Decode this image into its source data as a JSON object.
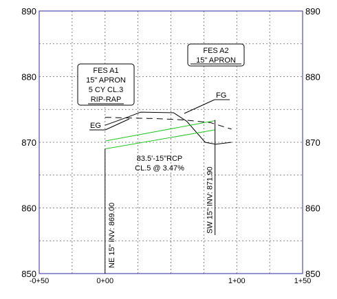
{
  "chart_data": {
    "type": "line",
    "title": "",
    "xlabel": "",
    "ylabel": "",
    "xlim": [
      -0.5,
      1.5
    ],
    "ylim": [
      850,
      890
    ],
    "grid": true,
    "x_ticks": [
      {
        "value": -0.5,
        "label": "-0+50"
      },
      {
        "value": 0,
        "label": "0+00"
      },
      {
        "value": 1,
        "label": "1+00"
      },
      {
        "value": 1.5,
        "label": "1+50"
      }
    ],
    "y_ticks": [
      {
        "value": 850,
        "label": "850"
      },
      {
        "value": 860,
        "label": "860"
      },
      {
        "value": 870,
        "label": "870"
      },
      {
        "value": 880,
        "label": "880"
      },
      {
        "value": 890,
        "label": "890"
      }
    ],
    "grid_x": [
      -0.25,
      0.25,
      0.5,
      0.75,
      1.25
    ],
    "grid_y": [
      855,
      865,
      875,
      885
    ],
    "series": [
      {
        "name": "FG",
        "style": "solid",
        "color": "#000000",
        "x": [
          0,
          0.18,
          0.27,
          0.52,
          0.62,
          0.76,
          0.84,
          0.96
        ],
        "y": [
          872.6,
          873.9,
          874.6,
          874.5,
          873.2,
          870.0,
          869.7,
          870.0
        ]
      },
      {
        "name": "EG",
        "style": "dashed",
        "color": "#000000",
        "x": [
          0,
          0.2,
          0.4,
          0.6,
          0.8,
          0.96
        ],
        "y": [
          873.8,
          873.7,
          873.6,
          873.4,
          873.0,
          872.0
        ]
      },
      {
        "name": "pipe-top",
        "style": "solid",
        "color": "#22c522",
        "x": [
          0,
          0.835
        ],
        "y": [
          870.2,
          873.3
        ]
      },
      {
        "name": "pipe-bottom",
        "style": "solid",
        "color": "#22c522",
        "x": [
          0,
          0.835
        ],
        "y": [
          869.0,
          871.9
        ]
      }
    ],
    "annotations": {
      "fes_a1": {
        "lines": [
          "FES A1",
          "15\" APRON",
          "5 CY CL.3",
          "RIP-RAP"
        ]
      },
      "fes_a2": {
        "lines": [
          "FES A2",
          "15\" APRON"
        ]
      },
      "fg_label": "FG",
      "eg_label": "EG",
      "pipe_label": [
        "83.5'-15\"RCP",
        "CL.5 @ 3.47%"
      ],
      "ne_inv": "NE 15\" INV: 869.00",
      "sw_inv": "SW 15\" INV: 871.90"
    }
  },
  "colors": {
    "frame": "#2a2aa0",
    "grid": "#606060",
    "ground": "#000000",
    "pipe": "#22c522"
  }
}
